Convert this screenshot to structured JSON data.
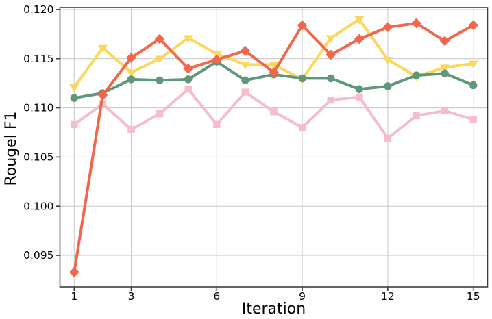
{
  "chart_data": {
    "type": "line",
    "title": "",
    "xlabel": "Iteration",
    "ylabel": "Rougel F1",
    "x": [
      1,
      2,
      3,
      4,
      5,
      6,
      7,
      8,
      9,
      10,
      11,
      12,
      13,
      14,
      15
    ],
    "series": [
      {
        "name": "pink-square-series",
        "marker": "square",
        "color": "#F5BDCB",
        "values": [
          0.1083,
          0.1104,
          0.1078,
          0.1094,
          0.1119,
          0.1083,
          0.1116,
          0.1096,
          0.108,
          0.1108,
          0.1111,
          0.1069,
          0.1092,
          0.1097,
          0.1088
        ]
      },
      {
        "name": "yellow-triangle-series",
        "marker": "triangle-down",
        "color": "#FBD75C",
        "values": [
          0.1121,
          0.1161,
          0.1136,
          0.115,
          0.1171,
          0.1155,
          0.1144,
          0.1144,
          0.1129,
          0.1171,
          0.119,
          0.1149,
          0.1132,
          0.1141,
          0.1145
        ]
      },
      {
        "name": "green-circle-series",
        "marker": "circle",
        "color": "#5F977A",
        "values": [
          0.111,
          0.1115,
          0.1129,
          0.1128,
          0.1129,
          0.1147,
          0.1128,
          0.1134,
          0.113,
          0.113,
          0.1119,
          0.1122,
          0.1133,
          0.1135,
          0.1123
        ]
      },
      {
        "name": "orange-diamond-series",
        "marker": "diamond",
        "color": "#F2664B",
        "values": [
          0.0933,
          0.1113,
          0.1151,
          0.117,
          0.114,
          0.1149,
          0.1158,
          0.1136,
          0.1184,
          0.1154,
          0.117,
          0.1182,
          0.1186,
          0.1168,
          0.1184
        ]
      }
    ],
    "xticks": [
      1,
      3,
      6,
      9,
      12,
      15
    ],
    "xtick_labels": [
      "1",
      "3",
      "6",
      "9",
      "12",
      "15"
    ],
    "yticks": [
      0.095,
      0.1,
      0.105,
      0.11,
      0.115,
      0.12
    ],
    "ytick_labels": [
      "0.095",
      "0.100",
      "0.105",
      "0.110",
      "0.115",
      "0.120"
    ],
    "xlim": [
      0.5,
      15.5
    ],
    "ylim": [
      0.0918,
      0.1202
    ],
    "grid": true,
    "legend": "none",
    "styles": {
      "grid_color": "#cccccc",
      "axis_color": "#3d3d3d",
      "text_color": "#000000",
      "background": "#ffffff"
    }
  }
}
